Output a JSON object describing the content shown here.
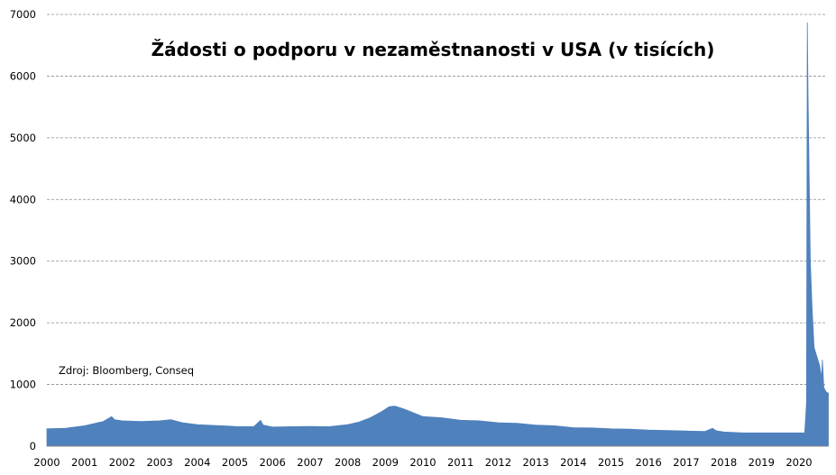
{
  "chart_data": {
    "type": "area",
    "title": "Žádosti o podporu v nezaměstnanosti v USA (v tisících)",
    "annotation": "Zdroj: Bloomberg, Conseq",
    "xlabel": "",
    "ylabel": "",
    "ylim": [
      0,
      7000
    ],
    "xlim": [
      2000,
      2020.8
    ],
    "y_ticks": [
      0,
      1000,
      2000,
      3000,
      4000,
      5000,
      6000,
      7000
    ],
    "x_ticks": [
      "2000",
      "2001",
      "2002",
      "2003",
      "2004",
      "2005",
      "2006",
      "2007",
      "2008",
      "2009",
      "2010",
      "2011",
      "2012",
      "2013",
      "2014",
      "2015",
      "2016",
      "2017",
      "2018",
      "2019",
      "2020"
    ],
    "grid": "horizontal dashed",
    "legend": "none",
    "color": "#4f81bd",
    "series": [
      {
        "x": [
          2000.0,
          2000.5,
          2001.0,
          2001.5,
          2001.72,
          2001.8,
          2002.0,
          2002.5,
          2003.0,
          2003.3,
          2003.6,
          2004.0,
          2004.5,
          2005.0,
          2005.5,
          2005.68,
          2005.75,
          2006.0,
          2006.5,
          2007.0,
          2007.5,
          2008.0,
          2008.3,
          2008.6,
          2008.9,
          2009.1,
          2009.25,
          2009.5,
          2010.0,
          2010.5,
          2011.0,
          2011.5,
          2012.0,
          2012.5,
          2013.0,
          2013.5,
          2014.0,
          2014.5,
          2015.0,
          2015.5,
          2016.0,
          2016.5,
          2017.0,
          2017.5,
          2017.7,
          2017.8,
          2018.0,
          2018.5,
          2019.0,
          2019.5,
          2020.0,
          2020.15,
          2020.2,
          2020.22,
          2020.24,
          2020.27,
          2020.3,
          2020.35,
          2020.4,
          2020.45,
          2020.5,
          2020.55,
          2020.6,
          2020.62,
          2020.66,
          2020.72,
          2020.78
        ],
        "values": [
          280,
          290,
          330,
          400,
          480,
          430,
          410,
          400,
          410,
          430,
          380,
          350,
          335,
          320,
          315,
          420,
          340,
          310,
          315,
          320,
          315,
          350,
          390,
          460,
          560,
          640,
          650,
          600,
          480,
          460,
          420,
          410,
          380,
          370,
          340,
          330,
          300,
          295,
          280,
          275,
          260,
          255,
          245,
          240,
          290,
          250,
          230,
          215,
          215,
          215,
          215,
          215,
          700,
          6870,
          5700,
          4300,
          3000,
          2200,
          1600,
          1500,
          1400,
          1300,
          1100,
          1400,
          950,
          880,
          860
        ]
      }
    ]
  }
}
